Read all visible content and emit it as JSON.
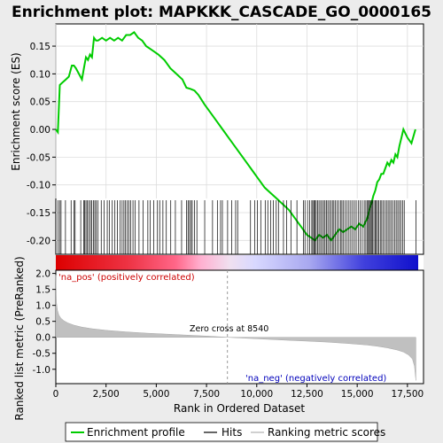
{
  "chart_data": {
    "type": "line",
    "title": "Enrichment plot: MAPKKK_CASCADE_GO_0000165",
    "top_panel": {
      "ylabel": "Enrichment score (ES)",
      "ylim": [
        -0.225,
        0.19
      ],
      "yticks": [
        -0.2,
        -0.15,
        -0.1,
        -0.05,
        0.0,
        0.05,
        0.1,
        0.15
      ],
      "ytick_labels": [
        "-0.20",
        "-0.15",
        "-0.10",
        "-0.05",
        "0.00",
        "0.05",
        "0.10",
        "0.15"
      ],
      "grid": true,
      "series": [
        {
          "name": "Enrichment profile",
          "color": "#00cc00",
          "x": [
            0,
            100,
            200,
            350,
            500,
            650,
            800,
            900,
            1000,
            1150,
            1300,
            1400,
            1500,
            1600,
            1700,
            1800,
            1900,
            2000,
            2100,
            2300,
            2500,
            2700,
            2900,
            3100,
            3300,
            3500,
            3700,
            3900,
            4100,
            4300,
            4500,
            4700,
            4900,
            5100,
            5400,
            5700,
            6000,
            6300,
            6500,
            6700,
            6900,
            7100,
            7400,
            7700,
            8000,
            8300,
            8600,
            8900,
            9200,
            9500,
            9800,
            10100,
            10400,
            10700,
            11000,
            11300,
            11600,
            11900,
            12200,
            12500,
            12700,
            12900,
            13100,
            13300,
            13500,
            13700,
            13900,
            14100,
            14300,
            14500,
            14700,
            14900,
            15100,
            15300,
            15500,
            15600,
            15700,
            15800,
            15900,
            16000,
            16100,
            16200,
            16300,
            16400,
            16500,
            16600,
            16700,
            16800,
            16900,
            17000,
            17100,
            17200,
            17300,
            17500,
            17700,
            17900
          ],
          "y": [
            0.0,
            -0.005,
            0.08,
            0.085,
            0.09,
            0.095,
            0.115,
            0.115,
            0.11,
            0.1,
            0.09,
            0.11,
            0.13,
            0.125,
            0.135,
            0.13,
            0.165,
            0.16,
            0.16,
            0.165,
            0.16,
            0.165,
            0.16,
            0.165,
            0.16,
            0.17,
            0.17,
            0.175,
            0.165,
            0.16,
            0.15,
            0.145,
            0.14,
            0.135,
            0.125,
            0.11,
            0.1,
            0.09,
            0.075,
            0.073,
            0.07,
            0.062,
            0.045,
            0.03,
            0.015,
            0.0,
            -0.015,
            -0.03,
            -0.045,
            -0.06,
            -0.075,
            -0.09,
            -0.105,
            -0.115,
            -0.125,
            -0.135,
            -0.145,
            -0.16,
            -0.175,
            -0.19,
            -0.195,
            -0.2,
            -0.19,
            -0.195,
            -0.19,
            -0.2,
            -0.19,
            -0.18,
            -0.185,
            -0.18,
            -0.175,
            -0.18,
            -0.17,
            -0.175,
            -0.16,
            -0.145,
            -0.135,
            -0.12,
            -0.11,
            -0.095,
            -0.09,
            -0.08,
            -0.08,
            -0.07,
            -0.06,
            -0.065,
            -0.055,
            -0.06,
            -0.045,
            -0.05,
            -0.03,
            -0.015,
            0.0,
            -0.015,
            -0.025,
            0.0
          ]
        }
      ]
    },
    "hits_panel": {
      "legend_name": "Hits",
      "positions": [
        110,
        190,
        260,
        480,
        760,
        900,
        960,
        1240,
        1390,
        1440,
        1500,
        1560,
        1640,
        1720,
        1790,
        1870,
        1940,
        2010,
        2100,
        2260,
        2410,
        2560,
        2660,
        2810,
        2940,
        3060,
        3190,
        3300,
        3390,
        3470,
        3560,
        3640,
        3720,
        3840,
        3940,
        4140,
        4340,
        4580,
        4700,
        4870,
        5060,
        5170,
        5330,
        5500,
        5720,
        5950,
        6260,
        6510,
        6580,
        6650,
        6720,
        6790,
        6900,
        7020,
        7410,
        7800,
        8040,
        8200,
        8290,
        8550,
        8750,
        8950,
        9050,
        9690,
        9900,
        10030,
        10200,
        10420,
        10550,
        10700,
        10820,
        10970,
        11080,
        11330,
        11490,
        11700,
        12000,
        12320,
        12400,
        12530,
        12640,
        12740,
        12790,
        12850,
        12900,
        12960,
        13030,
        13100,
        13180,
        13250,
        13330,
        13400,
        13470,
        13540,
        13620,
        13700,
        13770,
        13840,
        13920,
        14000,
        14080,
        14170,
        14240,
        14320,
        14410,
        14500,
        14590,
        14680,
        14770,
        14860,
        14950,
        15050,
        15150,
        15250,
        15350,
        15430,
        15510,
        15560,
        15610,
        15660,
        15710,
        15770,
        15830,
        15890,
        15950,
        16010,
        16080,
        16150,
        16220,
        16300,
        16380,
        16460,
        16540,
        16620,
        16700,
        16780,
        16860,
        16940,
        17020,
        17100,
        17180,
        17260,
        17340,
        17920
      ]
    },
    "rank_panel": {
      "ylabel": "Ranked list metric (PreRanked)",
      "ylim": [
        -1.45,
        2.1
      ],
      "yticks": [
        -1.0,
        -0.5,
        0.0,
        0.5,
        1.0,
        1.5,
        2.0
      ],
      "ytick_labels": [
        "-1.0",
        "-0.5",
        "0.0",
        "0.5",
        "1.0",
        "1.5",
        "2.0"
      ],
      "xlabel": "Rank in Ordered Dataset",
      "xlim": [
        0,
        18300
      ],
      "xticks": [
        0,
        2500,
        5000,
        7500,
        10000,
        12500,
        15000,
        17500
      ],
      "xtick_labels": [
        "0",
        "2,500",
        "5,000",
        "7,500",
        "10,000",
        "12,500",
        "15,000",
        "17,500"
      ],
      "series": [
        {
          "name": "Ranking metric scores",
          "color": "#c0c0c0",
          "x": [
            0,
            30,
            80,
            150,
            250,
            400,
            600,
            900,
            1300,
            1800,
            2500,
            3500,
            4500,
            5500,
            6500,
            7500,
            8540,
            9500,
            10500,
            11500,
            12500,
            13500,
            14500,
            15500,
            16000,
            16500,
            17000,
            17300,
            17550,
            17750,
            17850,
            17920
          ],
          "y": [
            1.95,
            1.1,
            0.85,
            0.7,
            0.6,
            0.52,
            0.45,
            0.38,
            0.32,
            0.27,
            0.22,
            0.17,
            0.13,
            0.1,
            0.07,
            0.04,
            0.0,
            -0.03,
            -0.06,
            -0.09,
            -0.12,
            -0.15,
            -0.19,
            -0.24,
            -0.28,
            -0.33,
            -0.4,
            -0.46,
            -0.55,
            -0.68,
            -0.9,
            -1.35
          ]
        }
      ],
      "zero_cross_label": "Zero cross at 8540",
      "zero_cross_x": 8540,
      "pos_label": "'na_pos' (positively correlated)",
      "neg_label": "'na_neg' (negatively correlated)"
    },
    "colorbar": {
      "description_colors": [
        "#dd0000",
        "#ffb0d0",
        "#d8d8ff",
        "#1010cc"
      ],
      "n_ranks": 17920
    },
    "legend": {
      "entries": [
        {
          "label": "Enrichment profile",
          "color": "#00cc00"
        },
        {
          "label": "Hits",
          "color": "#000000"
        },
        {
          "label": "Ranking metric scores",
          "color": "#c0c0c0"
        }
      ]
    }
  }
}
